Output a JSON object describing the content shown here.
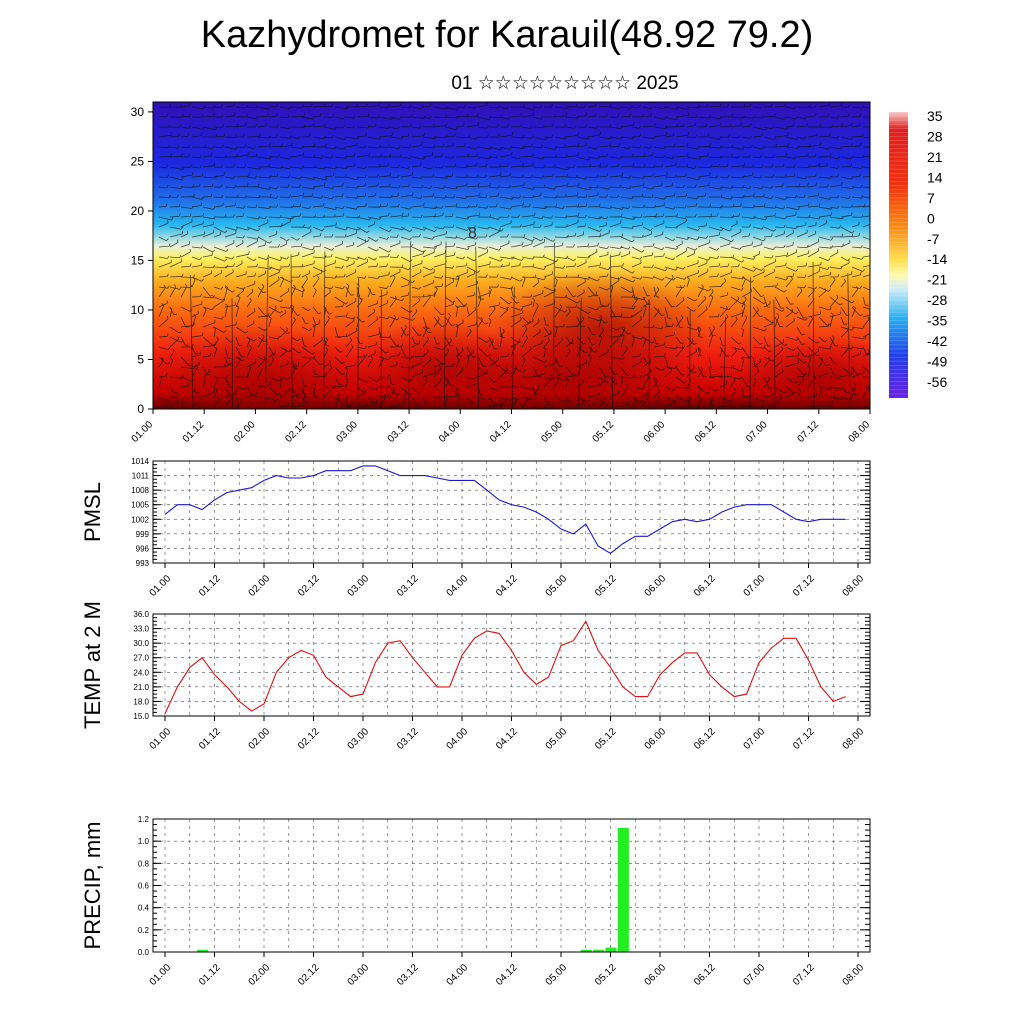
{
  "title": "Kazhydromet for Karauil(48.92 79.2)",
  "subtitle": "01 ☆☆☆☆☆☆☆☆☆ 2025",
  "chart_data": [
    {
      "type": "heatmap",
      "name": "upper-air temperature cross-section with wind barbs",
      "x_ticks": [
        "01.00",
        "01.12",
        "02.00",
        "02.12",
        "03.00",
        "03.12",
        "04.00",
        "04.12",
        "05.00",
        "05.12",
        "06.00",
        "06.12",
        "07.00",
        "07.12",
        "08.00"
      ],
      "y_ticks": [
        0,
        5,
        10,
        15,
        20,
        25,
        30
      ],
      "ylim": [
        0,
        31
      ],
      "colorbar": {
        "labels": [
          35,
          28,
          21,
          14,
          7,
          0,
          -7,
          -14,
          -21,
          -28,
          -35,
          -42,
          -49,
          -56
        ],
        "range": [
          -60,
          38
        ]
      },
      "contour_label": "8"
    },
    {
      "type": "line",
      "ylabel": "PMSL",
      "color": "#1a1acc",
      "x_ticks": [
        "01.00",
        "01.12",
        "02.00",
        "02.12",
        "03.00",
        "03.12",
        "04.00",
        "04.12",
        "05.00",
        "05.12",
        "06.00",
        "06.12",
        "07.00",
        "07.12",
        "08.00"
      ],
      "y_ticks": [
        993,
        996,
        999,
        1002,
        1005,
        1008,
        1011,
        1014
      ],
      "ylim": [
        993,
        1014
      ],
      "x": [
        0,
        3,
        6,
        9,
        12,
        15,
        18,
        21,
        24,
        27,
        30,
        33,
        36,
        39,
        42,
        45,
        48,
        51,
        54,
        57,
        60,
        63,
        66,
        69,
        72,
        75,
        78,
        81,
        84,
        87,
        90,
        93,
        96,
        99,
        102,
        105,
        108,
        111,
        114,
        117,
        120,
        123,
        126,
        129,
        132,
        135,
        138,
        141,
        144,
        147,
        150,
        153,
        156,
        159,
        162,
        165
      ],
      "values": [
        1003,
        1005,
        1005,
        1004,
        1006,
        1007.5,
        1008,
        1008.5,
        1010,
        1011,
        1010.5,
        1010.5,
        1011,
        1012,
        1012,
        1012,
        1013,
        1013,
        1012,
        1011,
        1011,
        1011,
        1010.5,
        1010,
        1010,
        1010,
        1008,
        1006,
        1005,
        1004.5,
        1003.5,
        1002,
        1000,
        999,
        1001,
        996.5,
        995,
        997,
        998.5,
        998.5,
        1000,
        1001.5,
        1002,
        1001.5,
        1002,
        1003.5,
        1004.5,
        1005,
        1005,
        1005,
        1003.5,
        1002,
        1001.5,
        1002,
        1002,
        1002
      ]
    },
    {
      "type": "line",
      "ylabel": "TEMP at 2 M",
      "color": "#dd1111",
      "x_ticks": [
        "01.00",
        "01.12",
        "02.00",
        "02.12",
        "03.00",
        "03.12",
        "04.00",
        "04.12",
        "05.00",
        "05.12",
        "06.00",
        "06.12",
        "07.00",
        "07.12",
        "08.00"
      ],
      "y_ticks": [
        "15.0",
        "18.0",
        "21.0",
        "24.0",
        "27.0",
        "30.0",
        "33.0",
        "36.0"
      ],
      "ylim": [
        15,
        36
      ],
      "x": [
        0,
        3,
        6,
        9,
        12,
        15,
        18,
        21,
        24,
        27,
        30,
        33,
        36,
        39,
        42,
        45,
        48,
        51,
        54,
        57,
        60,
        63,
        66,
        69,
        72,
        75,
        78,
        81,
        84,
        87,
        90,
        93,
        96,
        99,
        102,
        105,
        108,
        111,
        114,
        117,
        120,
        123,
        126,
        129,
        132,
        135,
        138,
        141,
        144,
        147,
        150,
        153,
        156,
        159,
        162,
        165
      ],
      "values": [
        15.5,
        21,
        25,
        27,
        23.5,
        21,
        18,
        16,
        17.5,
        24,
        27,
        28.5,
        27.5,
        23,
        21,
        19,
        19.5,
        26,
        30,
        30.5,
        27,
        24,
        21,
        21,
        27.5,
        31,
        32.5,
        32,
        28.5,
        24,
        21.5,
        23,
        29.5,
        30.5,
        34.5,
        28.5,
        25,
        21,
        19,
        19,
        23.5,
        26,
        28,
        28,
        23.5,
        21,
        19,
        19.5,
        26,
        29,
        31,
        31,
        26.5,
        21,
        18,
        19
      ]
    },
    {
      "type": "bar",
      "ylabel": "PRECIP, mm",
      "color": "#22ee22",
      "x_ticks": [
        "01.00",
        "01.12",
        "02.00",
        "02.12",
        "03.00",
        "03.12",
        "04.00",
        "04.12",
        "05.00",
        "05.12",
        "06.00",
        "06.12",
        "07.00",
        "07.12",
        "08.00"
      ],
      "y_ticks": [
        "0.0",
        "0.2",
        "0.4",
        "0.6",
        "0.8",
        "1.0",
        "1.2"
      ],
      "ylim": [
        0,
        1.2
      ],
      "x": [
        9,
        102,
        105,
        108,
        111
      ],
      "values": [
        0.02,
        0.02,
        0.02,
        0.04,
        1.12
      ]
    }
  ]
}
